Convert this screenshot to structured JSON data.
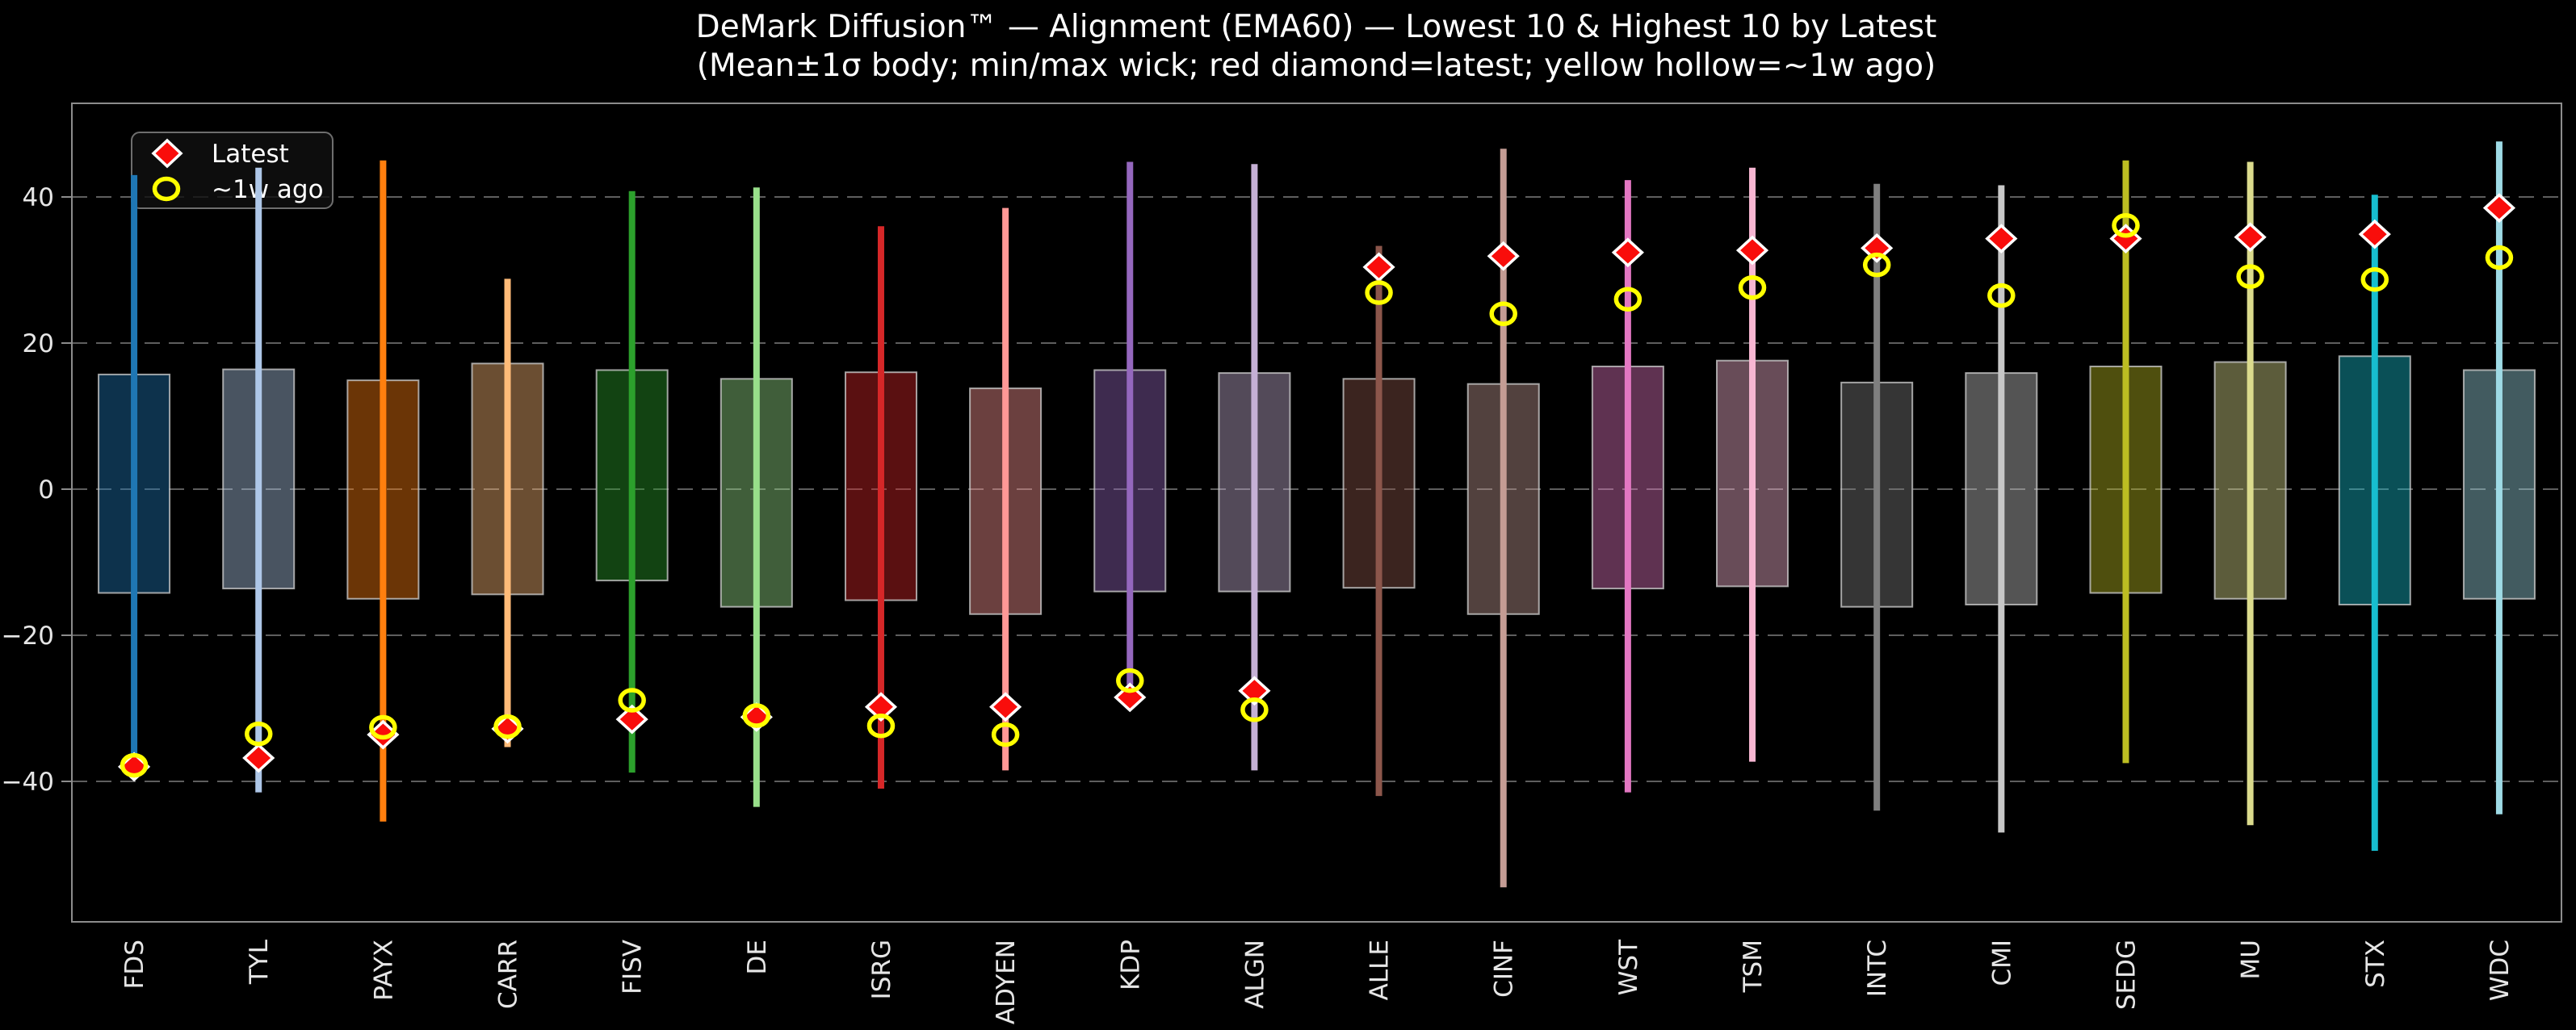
{
  "page": {
    "background": "#000000"
  },
  "chart_data": {
    "type": "bar",
    "subtype": "range-candles: mean±1σ body, min/max wick, latest and ~1-week-ago markers per ticker",
    "title": "DeMark Diffusion™ — Alignment (EMA60) — Lowest 10 & Highest 10 by Latest",
    "subtitle": "(Mean±1σ body; min/max wick; red diamond=latest; yellow hollow=~1w ago)",
    "ylim": [
      -59,
      53
    ],
    "yticks": [
      40,
      20,
      0,
      -20,
      -40
    ],
    "grid": "dashed-horizontal",
    "legend": {
      "position": "upper-left",
      "entries": [
        {
          "label": "Latest",
          "marker": "red-diamond"
        },
        {
          "label": "~1w ago",
          "marker": "yellow-hollow-circle"
        }
      ]
    },
    "categories": [
      "FDS",
      "TYL",
      "PAYX",
      "CARR",
      "FISV",
      "DE",
      "ISRG",
      "ADYEN",
      "KDP",
      "ALGN",
      "ALLE",
      "CINF",
      "WST",
      "TSM",
      "INTC",
      "CMI",
      "SEDG",
      "MU",
      "STX",
      "WDC"
    ],
    "series": [
      {
        "name": "max",
        "values": [
          43.0,
          44.0,
          45.0,
          28.8,
          40.8,
          41.3,
          36.0,
          38.5,
          44.8,
          44.5,
          33.3,
          46.6,
          42.3,
          44.0,
          41.8,
          41.6,
          45.0,
          44.8,
          40.3,
          47.6
        ]
      },
      {
        "name": "mean_plus_1sigma",
        "values": [
          15.7,
          16.4,
          14.9,
          17.2,
          16.3,
          15.1,
          16.0,
          13.8,
          16.3,
          15.9,
          15.1,
          14.4,
          16.8,
          17.6,
          14.6,
          15.9,
          16.8,
          17.4,
          18.2,
          16.3
        ]
      },
      {
        "name": "mean_minus_1sigma",
        "values": [
          -14.2,
          -13.6,
          -15.0,
          -14.4,
          -12.5,
          -16.1,
          -15.2,
          -17.1,
          -14.0,
          -14.0,
          -13.5,
          -17.1,
          -13.6,
          -13.3,
          -16.1,
          -15.8,
          -14.2,
          -15.0,
          -15.8,
          -15.0
        ]
      },
      {
        "name": "min",
        "values": [
          -37.5,
          -41.5,
          -45.5,
          -35.3,
          -38.8,
          -43.5,
          -41.0,
          -38.5,
          -26.8,
          -38.5,
          -42.0,
          -54.5,
          -41.5,
          -37.3,
          -44.0,
          -47.0,
          -37.5,
          -46.0,
          -49.5,
          -44.5
        ]
      },
      {
        "name": "latest_red_diamond",
        "values": [
          -38.0,
          -36.8,
          -33.6,
          -32.8,
          -31.5,
          -31.2,
          -29.8,
          -29.8,
          -28.5,
          -27.6,
          30.4,
          31.9,
          32.4,
          32.7,
          33.0,
          34.3,
          34.3,
          34.5,
          34.9,
          38.5
        ]
      },
      {
        "name": "week_ago_yellow_circle",
        "values": [
          -37.8,
          -33.5,
          -32.6,
          -32.5,
          -28.9,
          -31.0,
          -32.4,
          -33.6,
          -26.2,
          -30.2,
          26.9,
          24.0,
          26.0,
          27.6,
          30.7,
          26.5,
          36.1,
          29.1,
          28.7,
          31.7
        ]
      }
    ],
    "bar_colors": [
      "#1f77b4",
      "#aec7e8",
      "#ff7f0e",
      "#ffbb78",
      "#2ca02c",
      "#98df8a",
      "#d62728",
      "#ff9896",
      "#9467bd",
      "#c5b0d5",
      "#8c564b",
      "#c49c94",
      "#e377c2",
      "#f7b6d2",
      "#7f7f7f",
      "#c7c7c7",
      "#bcbd22",
      "#dbdb8d",
      "#17becf",
      "#9edae5"
    ],
    "style": {
      "red": "#f90d0b",
      "yellow": "#ffff00",
      "marker_edge": "#ffffff",
      "grid_color": "#5e5e5e",
      "spine_color": "#8c8c8c",
      "text_color": "#e6e6e6",
      "body_alpha": 0.42,
      "body_edge": "#cccccc"
    }
  }
}
